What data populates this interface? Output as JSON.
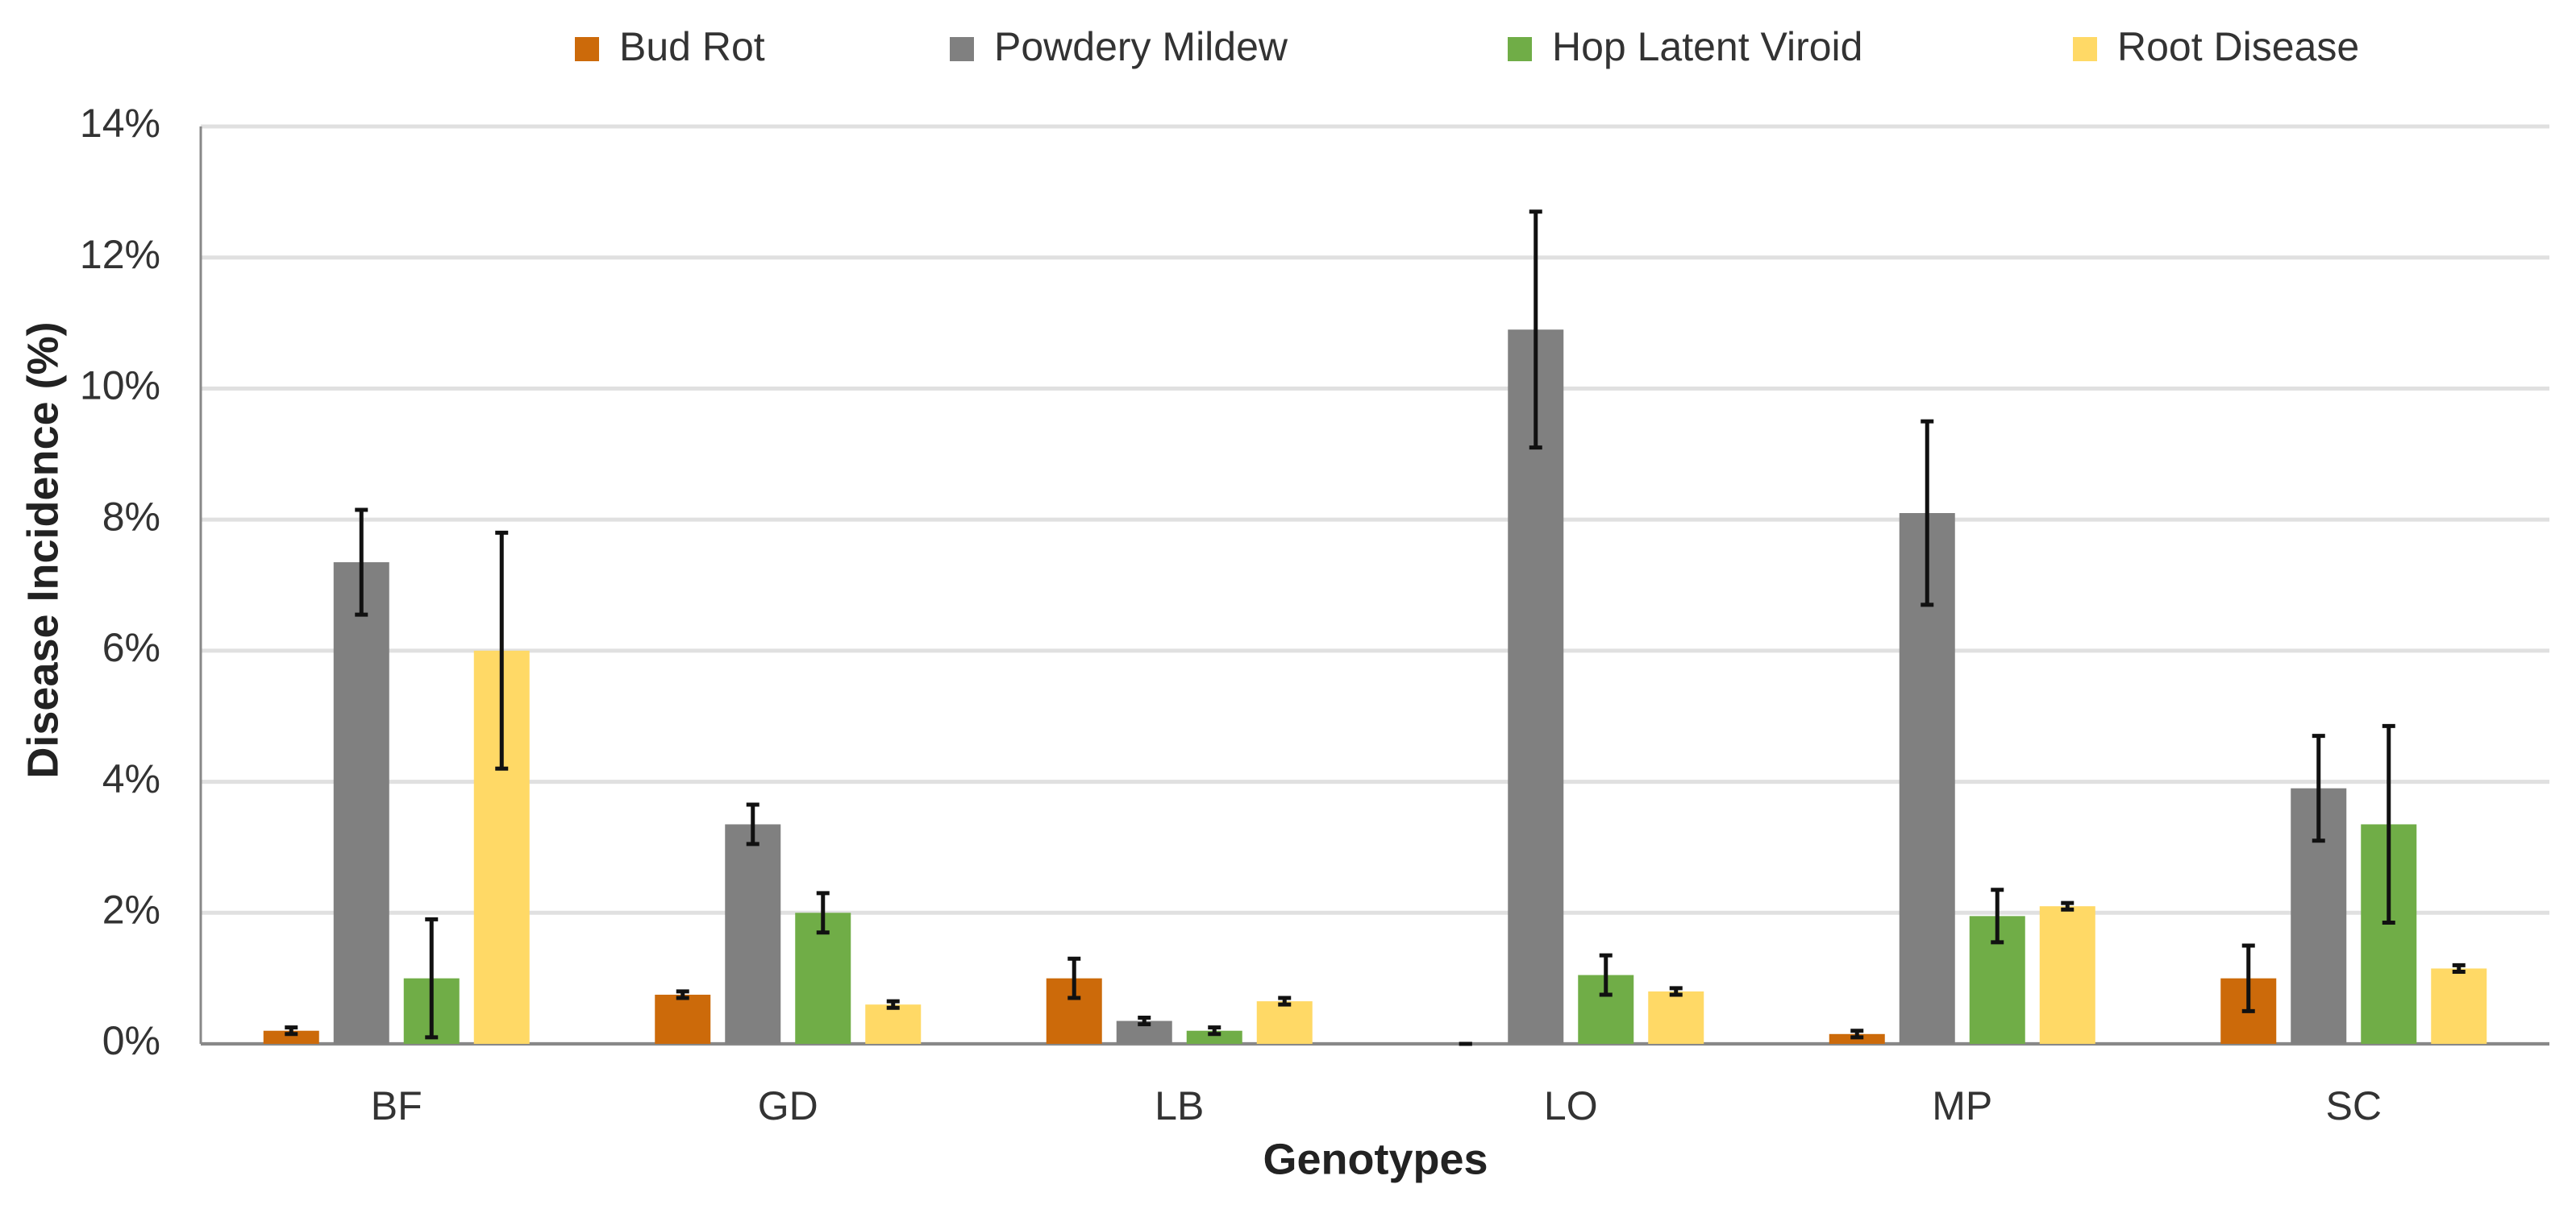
{
  "chart_data": {
    "type": "bar",
    "x_label": "Genotypes",
    "y_label": "Disease Incidence (%)",
    "categories": [
      "BF",
      "GD",
      "LB",
      "LO",
      "MP",
      "SC"
    ],
    "series": [
      {
        "name": "Bud Rot",
        "color": "#cc6a0a",
        "values": [
          0.2,
          0.75,
          1.0,
          0.0,
          0.15,
          1.0
        ],
        "errors": [
          0.05,
          0.05,
          0.3,
          0.0,
          0.05,
          0.5
        ]
      },
      {
        "name": "Powdery Mildew",
        "color": "#808080",
        "values": [
          7.35,
          3.35,
          0.35,
          10.9,
          8.1,
          3.9
        ],
        "errors": [
          0.8,
          0.3,
          0.05,
          1.8,
          1.4,
          0.8
        ]
      },
      {
        "name": "Hop Latent Viroid",
        "color": "#70ad47",
        "values": [
          1.0,
          2.0,
          0.2,
          1.05,
          1.95,
          3.35
        ],
        "errors": [
          0.9,
          0.3,
          0.05,
          0.3,
          0.4,
          1.5
        ]
      },
      {
        "name": "Root Disease",
        "color": "#ffd966",
        "values": [
          6.0,
          0.6,
          0.65,
          0.8,
          2.1,
          1.15
        ],
        "errors": [
          1.8,
          0.05,
          0.05,
          0.05,
          0.05,
          0.05
        ]
      }
    ],
    "ylim": [
      0,
      14
    ],
    "yticks": [
      {
        "value": 0,
        "label": "0%"
      },
      {
        "value": 2,
        "label": "2%"
      },
      {
        "value": 4,
        "label": "4%"
      },
      {
        "value": 6,
        "label": "6%"
      },
      {
        "value": 8,
        "label": "8%"
      },
      {
        "value": 10,
        "label": "10%"
      },
      {
        "value": 12,
        "label": "12%"
      },
      {
        "value": 14,
        "label": "14%"
      }
    ],
    "grid": true,
    "legend": "top"
  }
}
